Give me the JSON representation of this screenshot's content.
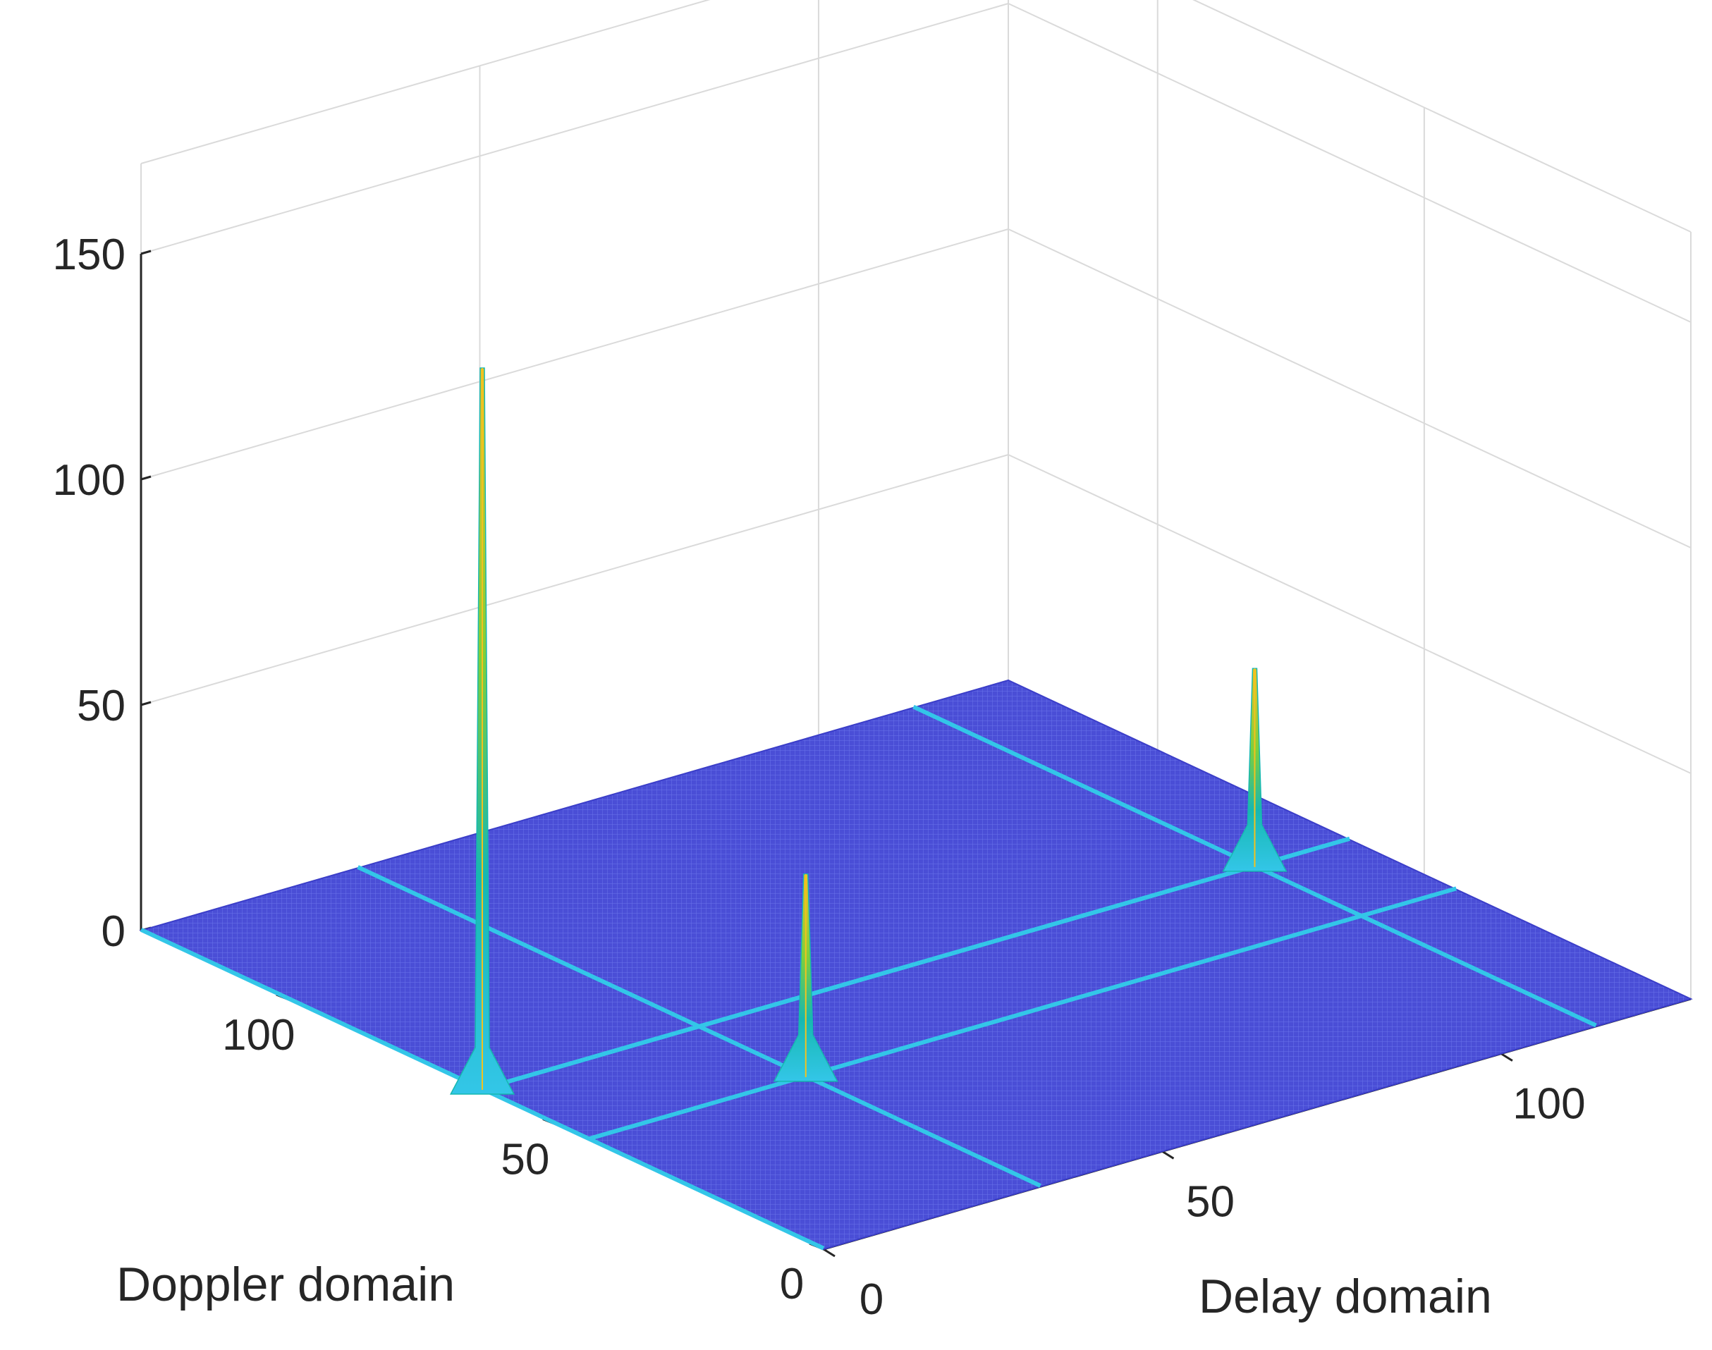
{
  "chart_data": {
    "type": "surface",
    "title": "",
    "xlabel": "Delay domain",
    "ylabel": "Doppler domain",
    "zlabel": "",
    "xlim": [
      0,
      128
    ],
    "ylim": [
      0,
      128
    ],
    "zlim": [
      0,
      150
    ],
    "xticks": [
      0,
      50,
      100
    ],
    "yticks": [
      0,
      50,
      100
    ],
    "zticks": [
      0,
      50,
      100,
      150
    ],
    "grid": true,
    "colormap": "parula",
    "colors": {
      "floor": "#4a4ed6",
      "floor_deep": "#3b3ec9",
      "ridge": "#33c6e8",
      "mid": "#16b8b0",
      "peak_mid": "#7dcf3c",
      "peak_top": "#f2c21f",
      "grid": "#dadada",
      "axis": "#262626"
    },
    "series": [
      {
        "delay": 0,
        "doppler": 64,
        "value": 160
      },
      {
        "delay": 32,
        "doppler": 44,
        "value": 45
      },
      {
        "delay": 114,
        "doppler": 64,
        "value": 44
      }
    ]
  }
}
